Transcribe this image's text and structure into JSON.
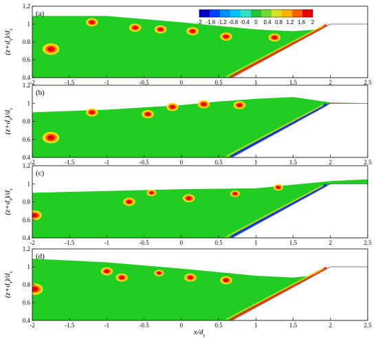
{
  "chart_data": {
    "type": "heatmap",
    "colorbar": {
      "ticks": [
        "-2",
        "-1.6",
        "-1.2",
        "-0.8",
        "-0.4",
        "0",
        "0.4",
        "0.8",
        "1.2",
        "1.6",
        "2"
      ],
      "colors": [
        "#0000c8",
        "#0040ff",
        "#0090ff",
        "#00c8ff",
        "#30e0c0",
        "#20c838",
        "#70d830",
        "#d8e020",
        "#ffb000",
        "#ff6000",
        "#e80000"
      ],
      "position": "top-right of panel (a)"
    },
    "x_axis": {
      "label": "x/d",
      "label_sub": "s",
      "range": [
        -2,
        2.5
      ],
      "ticks": [
        "-2",
        "-1.5",
        "-1",
        "-0.5",
        "0",
        "0.5",
        "1",
        "1.5",
        "2",
        "2.5"
      ]
    },
    "y_axis": {
      "label": "(z+d",
      "label_sub": "s",
      "label_tail": ")/d",
      "label_sub2": "s",
      "range": [
        0.4,
        1.2
      ],
      "ticks": [
        "0.4",
        "0.6",
        "0.8",
        "1",
        "1.2"
      ]
    },
    "slope": {
      "x_start": 0.65,
      "x_end": 2.0,
      "z_end": 1.0
    },
    "panels": [
      {
        "label": "(a)",
        "surface": [
          [
            -2,
            1.09
          ],
          [
            -1,
            1.09
          ],
          [
            0,
            1.02
          ],
          [
            0.5,
            0.98
          ],
          [
            1,
            0.94
          ],
          [
            1.5,
            0.92
          ],
          [
            2,
            0.95
          ],
          [
            2.5,
            0.97
          ]
        ],
        "vortices": [
          {
            "x": -1.75,
            "z": 0.72,
            "r": 0.07,
            "sign": 1
          },
          {
            "x": -1.2,
            "z": 1.02,
            "r": 0.05,
            "sign": 1
          },
          {
            "x": -0.62,
            "z": 0.96,
            "r": 0.05,
            "sign": 1
          },
          {
            "x": -0.28,
            "z": 0.94,
            "r": 0.05,
            "sign": 1
          },
          {
            "x": 0.15,
            "z": 0.92,
            "r": 0.05,
            "sign": 1
          },
          {
            "x": 0.6,
            "z": 0.86,
            "r": 0.05,
            "sign": 1
          },
          {
            "x": 1.25,
            "z": 0.85,
            "r": 0.05,
            "sign": 1
          }
        ],
        "blue_shear": false
      },
      {
        "label": "(b)",
        "surface": [
          [
            -2,
            0.9
          ],
          [
            -1,
            0.93
          ],
          [
            0,
            0.98
          ],
          [
            0.5,
            1.02
          ],
          [
            1,
            1.05
          ],
          [
            1.5,
            1.07
          ],
          [
            2,
            1.01
          ],
          [
            2.5,
            1.0
          ]
        ],
        "vortices": [
          {
            "x": -1.75,
            "z": 0.62,
            "r": 0.07,
            "sign": 1
          },
          {
            "x": -1.2,
            "z": 0.9,
            "r": 0.05,
            "sign": 1
          },
          {
            "x": -0.45,
            "z": 0.88,
            "r": 0.05,
            "sign": 1
          },
          {
            "x": -0.12,
            "z": 0.96,
            "r": 0.05,
            "sign": 1
          },
          {
            "x": 0.3,
            "z": 0.99,
            "r": 0.05,
            "sign": 1
          },
          {
            "x": 0.78,
            "z": 0.98,
            "r": 0.05,
            "sign": 1
          }
        ],
        "blue_shear": true
      },
      {
        "label": "(c)",
        "surface": [
          [
            -2,
            0.9
          ],
          [
            -1,
            0.92
          ],
          [
            0,
            0.94
          ],
          [
            1,
            0.95
          ],
          [
            1.5,
            0.99
          ],
          [
            2,
            1.03
          ],
          [
            2.5,
            1.05
          ]
        ],
        "vortices": [
          {
            "x": -1.97,
            "z": 0.65,
            "r": 0.06,
            "sign": 1
          },
          {
            "x": -0.7,
            "z": 0.8,
            "r": 0.05,
            "sign": 1
          },
          {
            "x": -0.4,
            "z": 0.9,
            "r": 0.04,
            "sign": 1
          },
          {
            "x": 0.1,
            "z": 0.84,
            "r": 0.05,
            "sign": 1
          },
          {
            "x": 0.72,
            "z": 0.89,
            "r": 0.04,
            "sign": 1
          },
          {
            "x": 1.3,
            "z": 0.96,
            "r": 0.04,
            "sign": 1
          }
        ],
        "blue_shear": true
      },
      {
        "label": "(d)",
        "surface": [
          [
            -2,
            1.09
          ],
          [
            -1,
            1.05
          ],
          [
            0,
            0.98
          ],
          [
            0.5,
            0.94
          ],
          [
            1,
            0.9
          ],
          [
            1.5,
            0.88
          ],
          [
            2,
            0.92
          ],
          [
            2.5,
            0.94
          ]
        ],
        "vortices": [
          {
            "x": -1.97,
            "z": 0.75,
            "r": 0.07,
            "sign": 1
          },
          {
            "x": -1.0,
            "z": 0.95,
            "r": 0.05,
            "sign": 1
          },
          {
            "x": -0.8,
            "z": 0.88,
            "r": 0.05,
            "sign": 1
          },
          {
            "x": -0.3,
            "z": 0.93,
            "r": 0.04,
            "sign": 1
          },
          {
            "x": 0.12,
            "z": 0.88,
            "r": 0.05,
            "sign": 1
          },
          {
            "x": 0.6,
            "z": 0.85,
            "r": 0.05,
            "sign": 1
          }
        ],
        "blue_shear": false
      }
    ]
  }
}
